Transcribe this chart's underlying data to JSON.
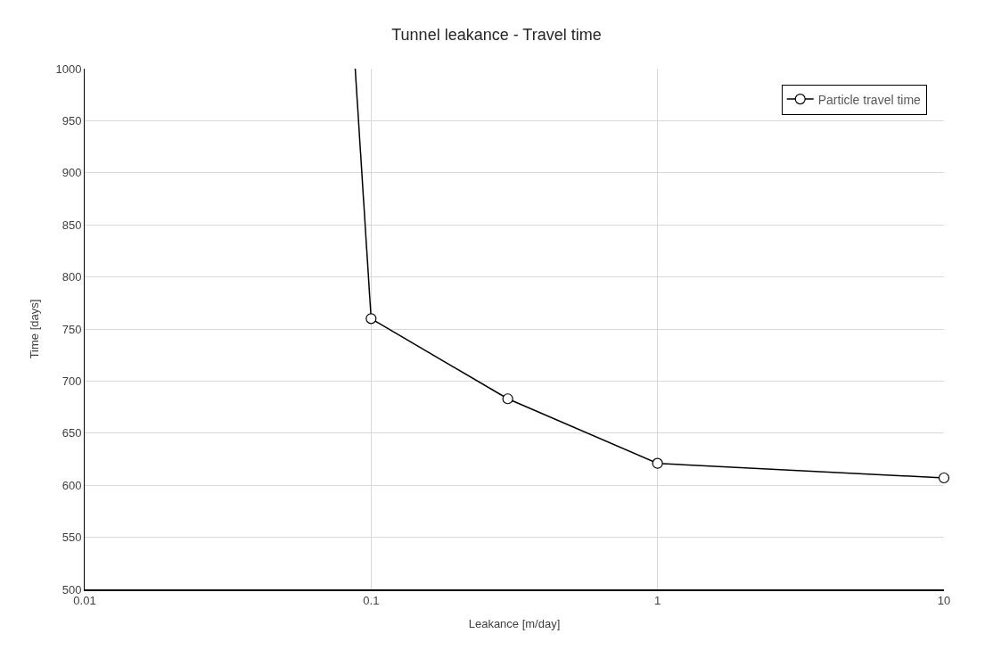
{
  "chart_data": {
    "type": "line",
    "title": "Tunnel leakance - Travel time",
    "xlabel": "Leakance [m/day]",
    "ylabel": "Time [days]",
    "log": "x",
    "xlim": [
      0.01,
      10
    ],
    "xticks": [
      0.01,
      0.1,
      1,
      10
    ],
    "ylim": [
      500,
      1000
    ],
    "yticks": [
      500,
      550,
      600,
      650,
      700,
      750,
      800,
      850,
      900,
      950,
      1000
    ],
    "grid": true,
    "legend": "top right",
    "series": [
      {
        "x": [
          0.088,
          0.1
        ],
        "values": [
          1000,
          760
        ],
        "color": "#000000"
      },
      {
        "name": "Particle travel time",
        "x": [
          0.1,
          0.3,
          1,
          10
        ],
        "values": [
          760,
          683,
          621,
          607
        ],
        "color": "#000000",
        "marker": "circle"
      }
    ]
  }
}
